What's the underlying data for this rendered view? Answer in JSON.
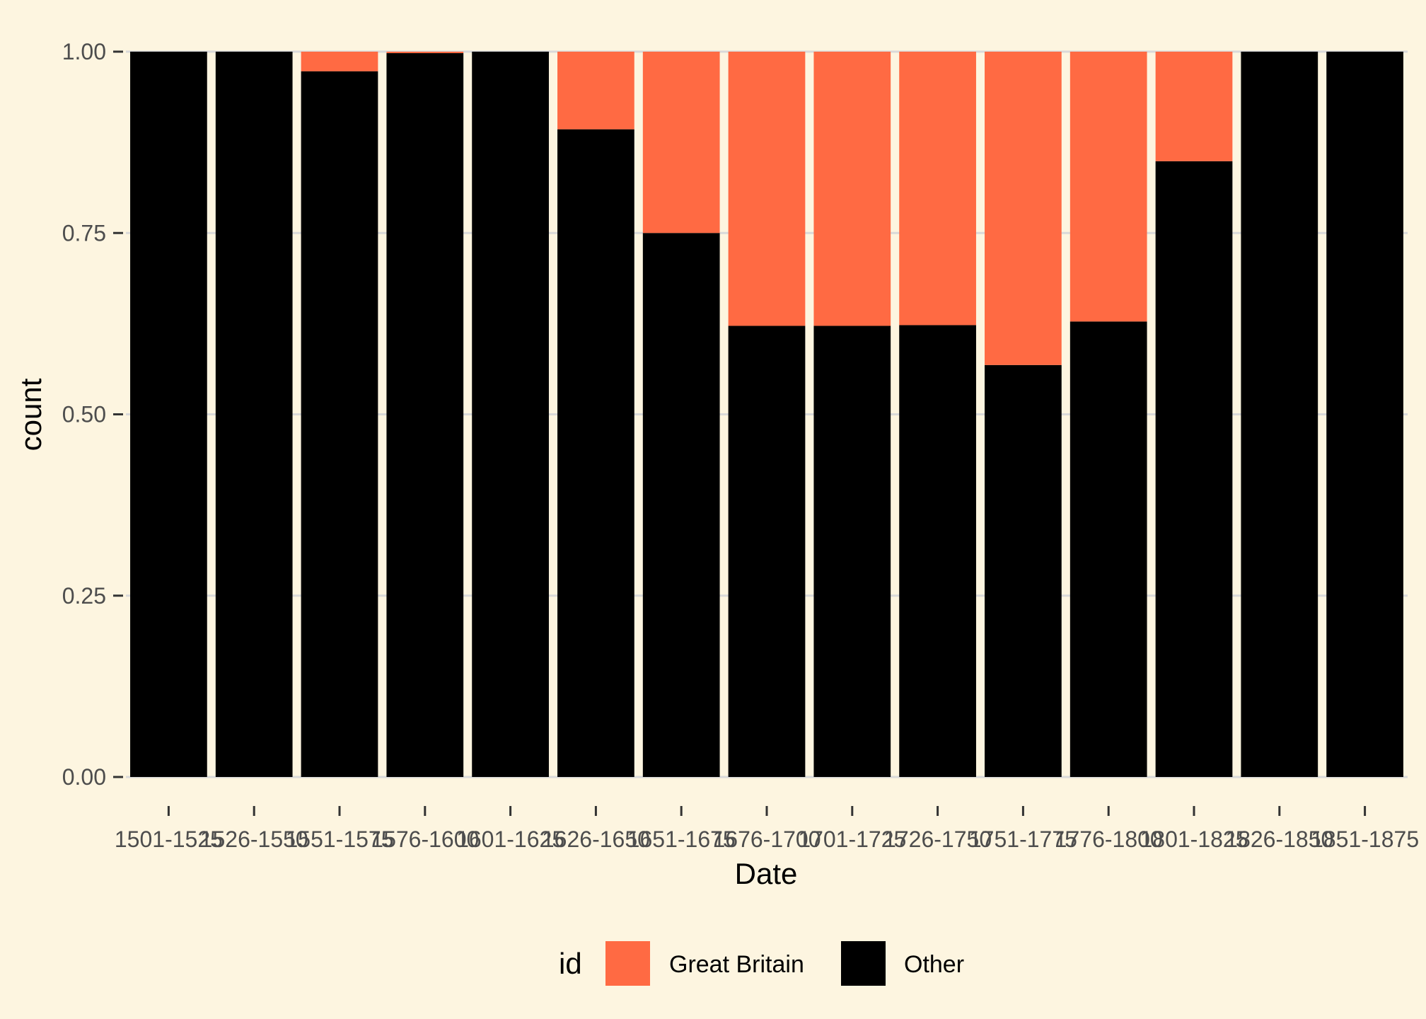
{
  "chart_data": {
    "type": "bar",
    "stacked": true,
    "position": "fill",
    "xlabel": "Date",
    "ylabel": "count",
    "ylim": [
      0,
      1
    ],
    "yticks": [
      "0.00",
      "0.25",
      "0.50",
      "0.75",
      "1.00"
    ],
    "ytick_values": [
      0,
      0.25,
      0.5,
      0.75,
      1.0
    ],
    "grid": "horizontal",
    "categories": [
      "1501-1525",
      "1526-1550",
      "1551-1575",
      "1576-1600",
      "1601-1625",
      "1626-1650",
      "1651-1675",
      "1676-1700",
      "1701-1725",
      "1726-1750",
      "1751-1775",
      "1776-1800",
      "1801-1825",
      "1826-1850",
      "1851-1875"
    ],
    "series": [
      {
        "name": "Other",
        "color": "#000000",
        "values": [
          1.0,
          1.0,
          0.973,
          0.998,
          1.0,
          0.893,
          0.75,
          0.622,
          0.622,
          0.623,
          0.568,
          0.628,
          0.849,
          1.0,
          1.0
        ]
      },
      {
        "name": "Great Britain",
        "color": "#ff6a43",
        "values": [
          0.0,
          0.0,
          0.027,
          0.002,
          0.0,
          0.107,
          0.25,
          0.378,
          0.378,
          0.377,
          0.432,
          0.372,
          0.151,
          0.0,
          0.0
        ]
      }
    ],
    "legend": {
      "title": "id",
      "position": "bottom",
      "entries": [
        "Great Britain",
        "Other"
      ]
    }
  },
  "colors": {
    "background": "#fdf5e0",
    "grid": "#d9d9d9",
    "tick": "#333333"
  }
}
